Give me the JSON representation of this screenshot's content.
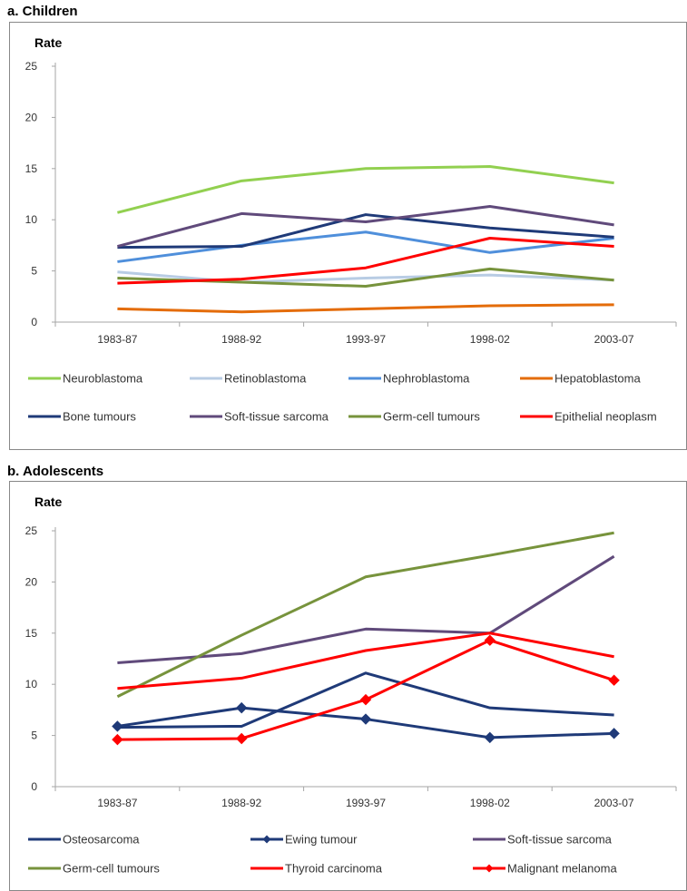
{
  "panel_titles": {
    "a": "a. Children",
    "b": "b. Adolescents"
  },
  "colors": {
    "neuroblastoma": "#92d050",
    "retinoblastoma": "#b8cce4",
    "nephroblastoma": "#4f8fdb",
    "hepatoblastoma": "#e46c0a",
    "navy": "#1f3a78",
    "purple": "#604a7b",
    "olive": "#77933c",
    "red": "#ff0000"
  },
  "chart_data": [
    {
      "type": "line",
      "title": "a. Children",
      "ylabel": "Rate",
      "xlabel": "",
      "ylim": [
        0,
        25
      ],
      "yticks": [
        0,
        5,
        10,
        15,
        20,
        25
      ],
      "categories": [
        "1983-87",
        "1988-92",
        "1993-97",
        "1998-02",
        "2003-07"
      ],
      "grid": false,
      "legend_position": "bottom",
      "series": [
        {
          "name": "Neuroblastoma",
          "color": "#92d050",
          "marker": "none",
          "values": [
            10.7,
            13.8,
            15.0,
            15.2,
            13.6
          ]
        },
        {
          "name": "Retinoblastoma",
          "color": "#b8cce4",
          "marker": "none",
          "values": [
            4.9,
            3.9,
            4.3,
            4.6,
            4.1
          ]
        },
        {
          "name": "Nephroblastoma",
          "color": "#4f8fdb",
          "marker": "none",
          "values": [
            5.9,
            7.5,
            8.8,
            6.8,
            8.2
          ]
        },
        {
          "name": "Hepatoblastoma",
          "color": "#e46c0a",
          "marker": "none",
          "values": [
            1.3,
            1.0,
            1.3,
            1.6,
            1.7
          ]
        },
        {
          "name": "Bone tumours",
          "color": "#1f3a78",
          "marker": "none",
          "values": [
            7.3,
            7.4,
            10.5,
            9.2,
            8.3
          ]
        },
        {
          "name": "Soft-tissue sarcoma",
          "color": "#604a7b",
          "marker": "none",
          "values": [
            7.4,
            10.6,
            9.8,
            11.3,
            9.5
          ]
        },
        {
          "name": "Germ-cell tumours",
          "color": "#77933c",
          "marker": "none",
          "values": [
            4.3,
            3.9,
            3.5,
            5.2,
            4.1
          ]
        },
        {
          "name": "Epithelial neoplasm",
          "color": "#ff0000",
          "marker": "none",
          "values": [
            3.8,
            4.2,
            5.3,
            8.2,
            7.4
          ]
        }
      ]
    },
    {
      "type": "line",
      "title": "b. Adolescents",
      "ylabel": "Rate",
      "xlabel": "",
      "ylim": [
        0,
        25
      ],
      "yticks": [
        0,
        5,
        10,
        15,
        20,
        25
      ],
      "categories": [
        "1983-87",
        "1988-92",
        "1993-97",
        "1998-02",
        "2003-07"
      ],
      "grid": false,
      "legend_position": "bottom",
      "series": [
        {
          "name": "Osteosarcoma",
          "color": "#1f3a78",
          "marker": "none",
          "values": [
            5.8,
            5.9,
            11.1,
            7.7,
            7.0
          ]
        },
        {
          "name": "Ewing tumour",
          "color": "#1f3a78",
          "marker": "diamond",
          "values": [
            5.9,
            7.7,
            6.6,
            4.8,
            5.2
          ]
        },
        {
          "name": "Soft-tissue sarcoma",
          "color": "#604a7b",
          "marker": "none",
          "values": [
            12.1,
            13.0,
            15.4,
            15.0,
            22.5
          ]
        },
        {
          "name": "Germ-cell tumours",
          "color": "#77933c",
          "marker": "none",
          "values": [
            8.8,
            14.8,
            20.5,
            22.6,
            24.8
          ]
        },
        {
          "name": "Thyroid carcinoma",
          "color": "#ff0000",
          "marker": "none",
          "values": [
            9.6,
            10.6,
            13.3,
            15.0,
            12.7
          ]
        },
        {
          "name": "Malignant melanoma",
          "color": "#ff0000",
          "marker": "diamond",
          "values": [
            4.6,
            4.7,
            8.5,
            14.3,
            10.4
          ]
        }
      ]
    }
  ]
}
